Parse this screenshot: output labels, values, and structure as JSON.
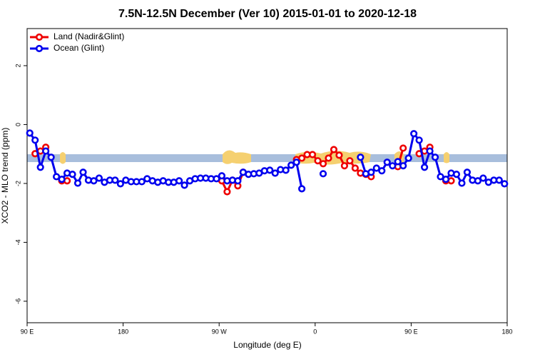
{
  "chart_data": {
    "type": "line",
    "title": "7.5N-12.5N December (Ver 10)   2015-01-01 to 2020-12-18",
    "x_label": "Longitude (deg E)",
    "y_label": "XCO2 - MLO trend (ppm)",
    "x": [
      92.5,
      97.5,
      102.5,
      107.5,
      112.5,
      117.5,
      122.5,
      127.5,
      132.5,
      137.5,
      142.5,
      147.5,
      152.5,
      157.5,
      162.5,
      167.5,
      172.5,
      177.5,
      182.5,
      187.5,
      192.5,
      197.5,
      202.5,
      207.5,
      212.5,
      217.5,
      222.5,
      227.5,
      232.5,
      237.5,
      242.5,
      247.5,
      252.5,
      257.5,
      262.5,
      267.5,
      272.5,
      277.5,
      282.5,
      287.5,
      292.5,
      297.5,
      302.5,
      307.5,
      312.5,
      317.5,
      322.5,
      327.5,
      332.5,
      337.5,
      342.5,
      347.5,
      352.5,
      357.5,
      362.5,
      367.5,
      372.5,
      377.5,
      382.5,
      387.5,
      392.5,
      397.5,
      402.5,
      407.5,
      412.5,
      417.5,
      422.5,
      427.5,
      432.5,
      437.5,
      442.5,
      447.5,
      452.5,
      457.5,
      462.5,
      467.5,
      472.5,
      477.5,
      482.5,
      487.5,
      492.5,
      497.5,
      502.5,
      507.5,
      512.5,
      517.5,
      522.5,
      527.5,
      532.5,
      537.5
    ],
    "series": [
      {
        "name": "Land (Nadir&Glint)",
        "color": "#ee0000",
        "values": [
          null,
          -0.99,
          -0.9,
          -0.77,
          null,
          null,
          -1.91,
          -1.91,
          null,
          null,
          null,
          null,
          null,
          null,
          null,
          null,
          null,
          null,
          null,
          null,
          null,
          null,
          null,
          null,
          null,
          null,
          null,
          null,
          null,
          null,
          null,
          null,
          null,
          null,
          null,
          null,
          -1.91,
          -2.28,
          -1.89,
          -2.08,
          -1.62,
          null,
          null,
          null,
          null,
          null,
          null,
          null,
          null,
          null,
          -1.19,
          -1.14,
          -1.02,
          -1.02,
          -1.23,
          -1.33,
          -1.14,
          -0.85,
          -1.04,
          -1.4,
          -1.23,
          -1.48,
          -1.65,
          -1.69,
          -1.77,
          null,
          null,
          null,
          null,
          -1.43,
          -0.8,
          null,
          null,
          -0.99,
          -0.9,
          -0.77,
          null,
          null,
          -1.91,
          -1.91,
          null,
          null,
          null,
          null,
          null,
          null,
          null,
          null,
          null,
          null
        ]
      },
      {
        "name": "Ocean (Glint)",
        "color": "#0000ee",
        "values": [
          -0.29,
          -0.53,
          -1.45,
          -0.9,
          -1.11,
          -1.77,
          -1.86,
          -1.65,
          -1.69,
          -1.99,
          -1.62,
          -1.89,
          -1.91,
          -1.82,
          -1.96,
          -1.89,
          -1.89,
          -2.01,
          -1.89,
          -1.94,
          -1.94,
          -1.94,
          -1.84,
          -1.91,
          -1.96,
          -1.91,
          -1.96,
          -1.96,
          -1.91,
          -2.06,
          -1.91,
          -1.84,
          -1.82,
          -1.82,
          -1.84,
          -1.84,
          -1.74,
          -1.91,
          -1.89,
          -1.91,
          -1.62,
          -1.69,
          -1.67,
          -1.65,
          -1.57,
          -1.55,
          -1.65,
          -1.53,
          -1.55,
          -1.38,
          -1.28,
          -2.18,
          null,
          null,
          null,
          -1.67,
          null,
          null,
          null,
          null,
          null,
          null,
          -1.11,
          -1.67,
          -1.62,
          -1.48,
          -1.57,
          -1.28,
          -1.4,
          -1.26,
          -1.4,
          -1.14,
          -0.31,
          -0.53,
          -1.45,
          -0.9,
          -1.11,
          -1.77,
          -1.86,
          -1.65,
          -1.69,
          -1.99,
          -1.62,
          -1.89,
          -1.91,
          -1.82,
          -1.96,
          -1.89,
          -1.89,
          -2.01
        ]
      }
    ],
    "xlim": [
      90,
      540
    ],
    "xticks": [
      {
        "value": 90,
        "label": "90 E"
      },
      180,
      {
        "value": 270,
        "label": "90 W"
      },
      {
        "value": 360,
        "label": "0"
      },
      {
        "value": 450,
        "label": "90 E"
      },
      {
        "value": 540,
        "label": "180"
      }
    ],
    "ylim": [
      -6.73,
      3.26
    ],
    "yticks": [
      -6,
      -4,
      -2,
      0,
      2
    ],
    "legend": "top-left"
  }
}
